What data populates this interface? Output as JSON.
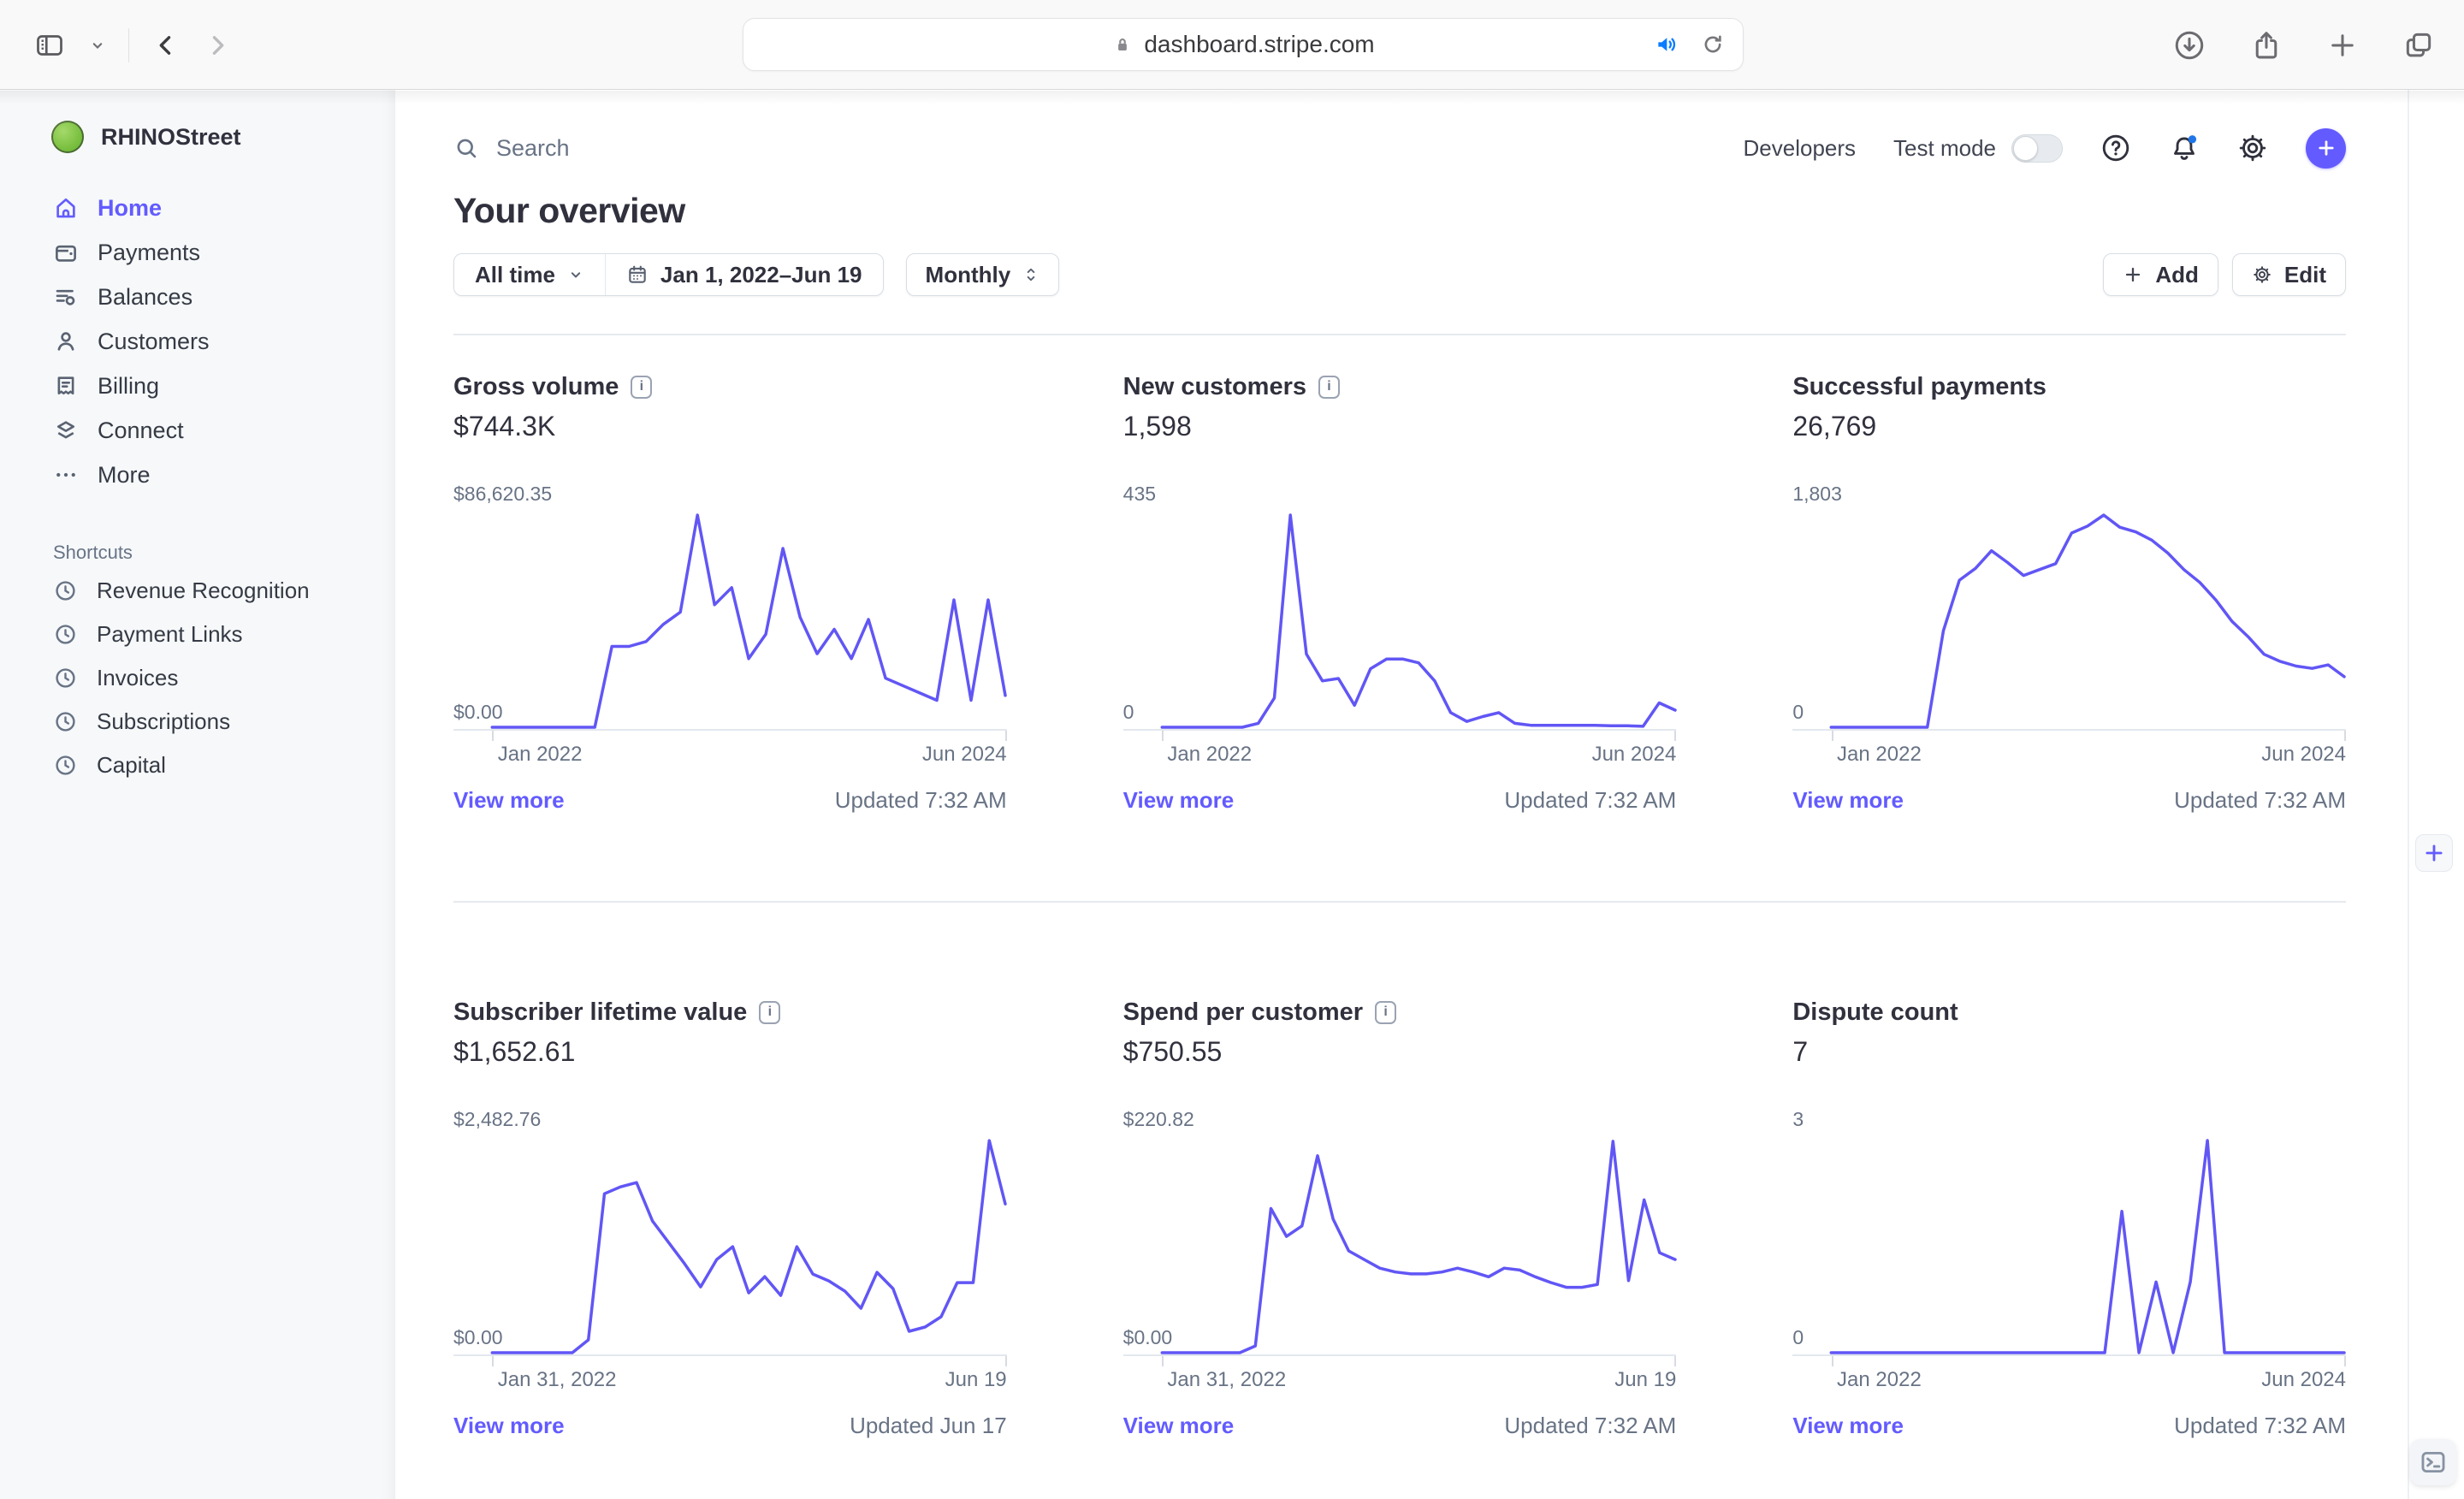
{
  "browser": {
    "url": "dashboard.stripe.com"
  },
  "theme": {
    "accent": "#635bff",
    "chart_line": "#6156f5",
    "notification_dot": "#1f75e8",
    "logo_green": "#7cc142"
  },
  "sidebar": {
    "account_name": "RHINOStreet",
    "nav": [
      {
        "label": "Home",
        "icon": "home-icon",
        "active": true
      },
      {
        "label": "Payments",
        "icon": "wallet-icon",
        "active": false
      },
      {
        "label": "Balances",
        "icon": "balances-icon",
        "active": false
      },
      {
        "label": "Customers",
        "icon": "person-icon",
        "active": false
      },
      {
        "label": "Billing",
        "icon": "receipt-icon",
        "active": false
      },
      {
        "label": "Connect",
        "icon": "layers-icon",
        "active": false
      },
      {
        "label": "More",
        "icon": "ellipsis-icon",
        "active": false
      }
    ],
    "shortcuts_label": "Shortcuts",
    "shortcuts": [
      {
        "label": "Revenue Recognition",
        "icon": "clock-icon"
      },
      {
        "label": "Payment Links",
        "icon": "clock-icon"
      },
      {
        "label": "Invoices",
        "icon": "clock-icon"
      },
      {
        "label": "Subscriptions",
        "icon": "clock-icon"
      },
      {
        "label": "Capital",
        "icon": "clock-icon"
      }
    ]
  },
  "header": {
    "search_placeholder": "Search",
    "developers_label": "Developers",
    "test_mode_label": "Test mode",
    "test_mode_on": false
  },
  "overview": {
    "title": "Your overview",
    "filters": {
      "range_label": "All time",
      "date_range": "Jan 1, 2022–Jun 19",
      "interval": "Monthly"
    },
    "actions": {
      "add": "Add",
      "edit": "Edit"
    }
  },
  "cards": [
    {
      "title": "Gross volume",
      "has_info": true,
      "value": "$744.3K",
      "y_max": "$86,620.35",
      "y_min": "$0.00",
      "x_start": "Jan 2022",
      "x_end": "Jun 2024",
      "view_more": "View more",
      "updated": "Updated 7:32 AM",
      "chart": {
        "type": "line",
        "ylim": [
          0,
          86620.35
        ],
        "max": 86620.35,
        "values": [
          0,
          0,
          0,
          0,
          0,
          0,
          0,
          33000,
          33000,
          35000,
          42000,
          47000,
          86620,
          50000,
          57000,
          28000,
          38000,
          73000,
          45000,
          30000,
          40000,
          28000,
          44000,
          20000,
          17000,
          14000,
          11000,
          52000,
          11000,
          52000,
          13000
        ]
      }
    },
    {
      "title": "New customers",
      "has_info": true,
      "value": "1,598",
      "y_max": "435",
      "y_min": "0",
      "x_start": "Jan 2022",
      "x_end": "Jun 2024",
      "view_more": "View more",
      "updated": "Updated 7:32 AM",
      "chart": {
        "type": "line",
        "ylim": [
          0,
          435
        ],
        "max": 435,
        "values": [
          0,
          0,
          0,
          0,
          0,
          0,
          8,
          60,
          435,
          150,
          95,
          100,
          45,
          120,
          140,
          140,
          132,
          95,
          30,
          12,
          22,
          30,
          8,
          4,
          4,
          4,
          4,
          4,
          3,
          3,
          2,
          50,
          35
        ]
      }
    },
    {
      "title": "Successful payments",
      "has_info": false,
      "value": "26,769",
      "y_max": "1,803",
      "y_min": "0",
      "x_start": "Jan 2022",
      "x_end": "Jun 2024",
      "view_more": "View more",
      "updated": "Updated 7:32 AM",
      "chart": {
        "type": "line",
        "ylim": [
          0,
          1803
        ],
        "max": 1803,
        "values": [
          0,
          0,
          0,
          0,
          0,
          0,
          0,
          820,
          1250,
          1350,
          1500,
          1400,
          1290,
          1340,
          1390,
          1650,
          1710,
          1803,
          1700,
          1660,
          1590,
          1480,
          1340,
          1230,
          1080,
          900,
          770,
          620,
          560,
          520,
          500,
          530,
          430
        ]
      }
    },
    {
      "title": "Subscriber lifetime value",
      "has_info": true,
      "value": "$1,652.61",
      "y_max": "$2,482.76",
      "y_min": "$0.00",
      "x_start": "Jan 31, 2022",
      "x_end": "Jun 19",
      "view_more": "View more",
      "updated": "Updated Jun 17",
      "chart": {
        "type": "line",
        "ylim": [
          0,
          2482.76
        ],
        "max": 2482.76,
        "values": [
          0,
          0,
          0,
          0,
          0,
          0,
          150,
          1860,
          1940,
          1990,
          1540,
          1290,
          1040,
          770,
          1090,
          1240,
          700,
          890,
          670,
          1240,
          920,
          840,
          720,
          520,
          940,
          750,
          250,
          300,
          420,
          820,
          820,
          2482,
          1740
        ]
      }
    },
    {
      "title": "Spend per customer",
      "has_info": true,
      "value": "$750.55",
      "y_max": "$220.82",
      "y_min": "$0.00",
      "x_start": "Jan 31, 2022",
      "x_end": "Jun 19",
      "view_more": "View more",
      "updated": "Updated 7:32 AM",
      "chart": {
        "type": "line",
        "ylim": [
          0,
          220.82
        ],
        "max": 220.82,
        "values": [
          0,
          0,
          0,
          0,
          0,
          0,
          7,
          150,
          121,
          132,
          205,
          139,
          106,
          97,
          88,
          84,
          82,
          82,
          84,
          88,
          84,
          79,
          88,
          86,
          79,
          73,
          68,
          68,
          71,
          220,
          75,
          159,
          104,
          97
        ]
      }
    },
    {
      "title": "Dispute count",
      "has_info": false,
      "value": "7",
      "y_max": "3",
      "y_min": "0",
      "x_start": "Jan 2022",
      "x_end": "Jun 2024",
      "view_more": "View more",
      "updated": "Updated 7:32 AM",
      "chart": {
        "type": "line",
        "ylim": [
          0,
          3
        ],
        "max": 3,
        "values": [
          0,
          0,
          0,
          0,
          0,
          0,
          0,
          0,
          0,
          0,
          0,
          0,
          0,
          0,
          0,
          0,
          0,
          2,
          0,
          1,
          0,
          1,
          3,
          0,
          0,
          0,
          0,
          0,
          0,
          0,
          0
        ]
      }
    }
  ]
}
